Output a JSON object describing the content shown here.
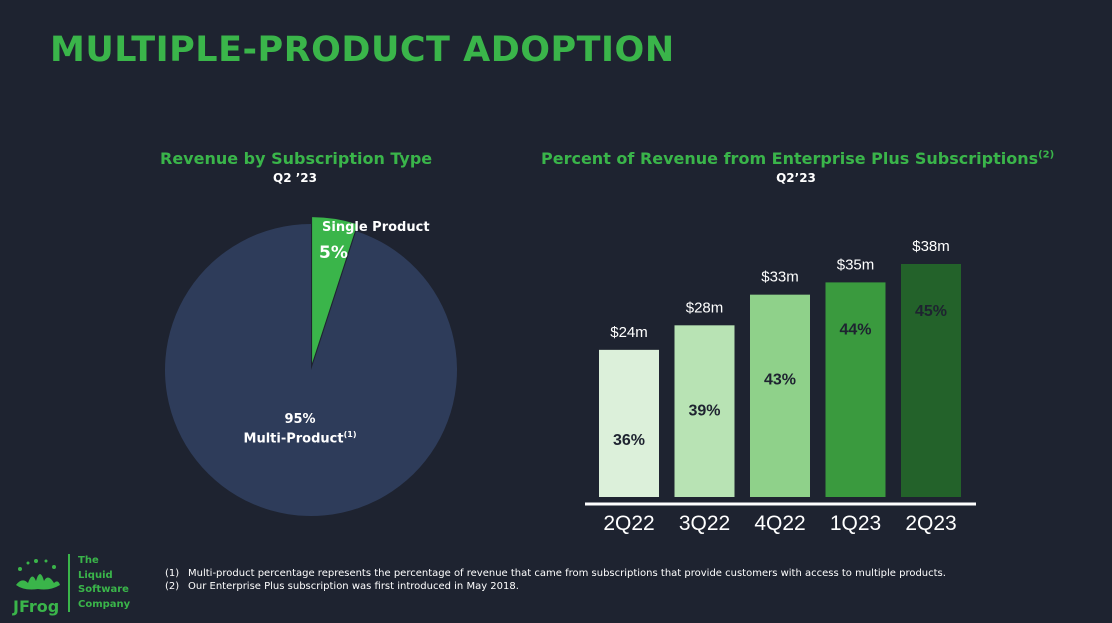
{
  "slide": {
    "title": "MULTIPLE-PRODUCT ADOPTION"
  },
  "colors": {
    "background": "#1e2330",
    "accent_green": "#3ab54a",
    "pie_multi": "#2e3c5a",
    "pie_single": "#3ab54a",
    "bars": [
      "#dcf0da",
      "#b8e3b4",
      "#8fd18a",
      "#3a9a3e",
      "#23622a"
    ]
  },
  "chart_data": [
    {
      "type": "pie",
      "title": "Revenue by Subscription Type",
      "subtitle": "Q2 ’23",
      "slices": [
        {
          "label": "Multi-Product",
          "footnote": "(1)",
          "value": 95,
          "value_label": "95%"
        },
        {
          "label": "Single Product",
          "value": 5,
          "value_label": "5%"
        }
      ]
    },
    {
      "type": "bar",
      "title": "Percent of Revenue from Enterprise Plus Subscriptions",
      "title_footnote": "(2)",
      "subtitle": "Q2’23",
      "categories": [
        "2Q22",
        "3Q22",
        "4Q22",
        "1Q23",
        "2Q23"
      ],
      "values": [
        24,
        28,
        33,
        35,
        38
      ],
      "value_labels": [
        "$24m",
        "$28m",
        "$33m",
        "$35m",
        "$38m"
      ],
      "percent_labels": [
        "36%",
        "39%",
        "43%",
        "44%",
        "45%"
      ],
      "unit": "$m",
      "ylim": [
        0,
        40
      ],
      "grid": false,
      "legend": "none"
    }
  ],
  "footnotes": [
    {
      "mark": "(1)",
      "text": "Multi-product percentage represents the percentage of revenue that came from subscriptions that provide customers with access to multiple products."
    },
    {
      "mark": "(2)",
      "text": "Our Enterprise Plus subscription was first introduced in May 2018."
    }
  ],
  "logo": {
    "wordmark": "JFrog",
    "tagline": [
      "The",
      "Liquid",
      "Software",
      "Company"
    ]
  }
}
